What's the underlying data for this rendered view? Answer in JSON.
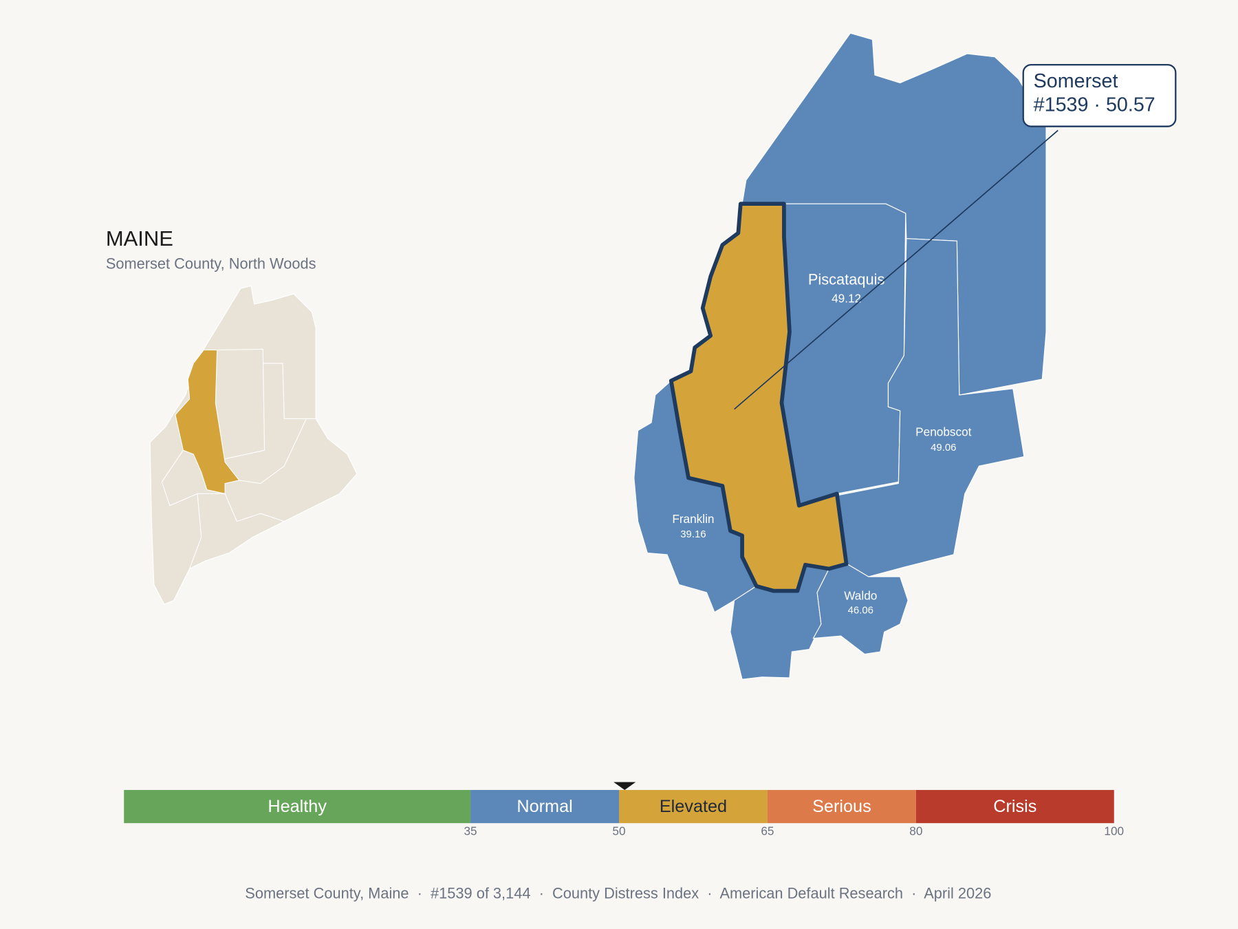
{
  "state": {
    "title": "MAINE",
    "subtitle": "Somerset County, North Woods"
  },
  "callout": {
    "name": "Somerset",
    "detail": "#1539 · 50.57"
  },
  "counties": [
    {
      "name": "Piscataquis",
      "score": 49.12
    },
    {
      "name": "Penobscot",
      "score": 49.06
    },
    {
      "name": "Franklin",
      "score": 39.16
    },
    {
      "name": "Waldo",
      "score": 46.06
    }
  ],
  "scale": {
    "xlim": [
      0,
      100
    ],
    "xticks": [
      35,
      50,
      65,
      80,
      100
    ],
    "score": 50.57,
    "bands": [
      {
        "name": "Healthy",
        "color": "#67a65a",
        "text_color": "#ffffff"
      },
      {
        "name": "Normal",
        "color": "#5b88b8",
        "text_color": "#ffffff"
      },
      {
        "name": "Elevated",
        "color": "#d4a43a",
        "text_color": "#1f2937"
      },
      {
        "name": "Serious",
        "color": "#dc7a4a",
        "text_color": "#ffffff"
      },
      {
        "name": "Crisis",
        "color": "#b93b2c",
        "text_color": "#ffffff"
      }
    ]
  },
  "footer": "Somerset County, Maine  ·  #1539 of 3,144  ·  County Distress Index  ·  American Default Research  ·  April 2026"
}
